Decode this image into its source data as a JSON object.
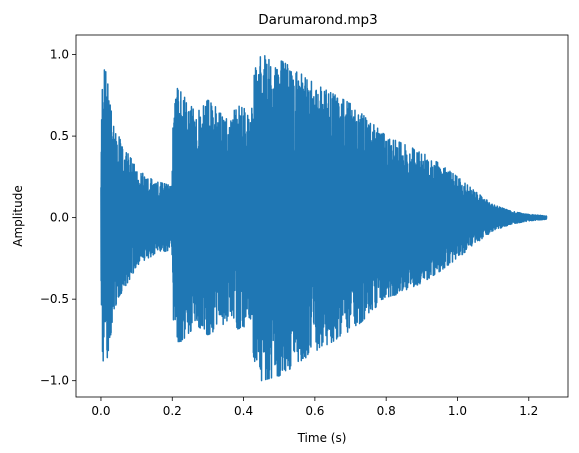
{
  "chart_data": {
    "type": "line",
    "title": "Darumarond.mp3",
    "xlabel": "Time (s)",
    "ylabel": "Amplitude",
    "xlim": [
      -0.07,
      1.31
    ],
    "ylim": [
      -1.1,
      1.12
    ],
    "grid": false,
    "series": [
      {
        "color": "#1f77b4",
        "envelope": {
          "t": [
            0.0,
            0.003,
            0.008,
            0.015,
            0.025,
            0.04,
            0.06,
            0.08,
            0.1,
            0.13,
            0.16,
            0.19,
            0.199,
            0.202,
            0.215,
            0.24,
            0.27,
            0.3,
            0.33,
            0.36,
            0.39,
            0.42,
            0.43,
            0.45,
            0.5,
            0.55,
            0.6,
            0.65,
            0.7,
            0.75,
            0.8,
            0.85,
            0.9,
            0.95,
            1.0,
            1.05,
            1.1,
            1.15,
            1.2,
            1.25
          ],
          "amplitude": [
            0.3,
            0.85,
            0.98,
            0.9,
            0.75,
            0.55,
            0.45,
            0.38,
            0.3,
            0.25,
            0.22,
            0.2,
            0.2,
            0.62,
            0.8,
            0.72,
            0.66,
            0.72,
            0.68,
            0.62,
            0.7,
            0.62,
            0.9,
            1.0,
            0.97,
            0.9,
            0.82,
            0.76,
            0.7,
            0.6,
            0.5,
            0.45,
            0.4,
            0.33,
            0.25,
            0.16,
            0.08,
            0.04,
            0.02,
            0.01
          ]
        }
      }
    ],
    "x_ticks": [
      0.0,
      0.2,
      0.4,
      0.6,
      0.8,
      1.0,
      1.2
    ],
    "x_tick_labels": [
      "0.0",
      "0.2",
      "0.4",
      "0.6",
      "0.8",
      "1.0",
      "1.2"
    ],
    "y_ticks": [
      -1.0,
      -0.5,
      0.0,
      0.5,
      1.0
    ],
    "y_tick_labels": [
      "−1.0",
      "−0.5",
      "0.0",
      "0.5",
      "1.0"
    ]
  }
}
